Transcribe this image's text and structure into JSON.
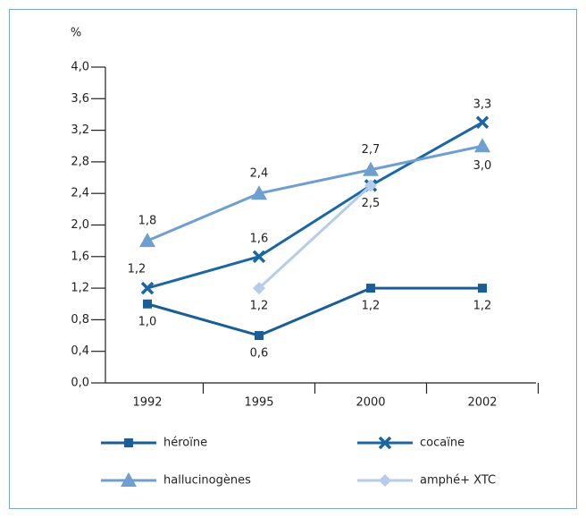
{
  "chart_data": {
    "type": "line",
    "y_label": "%",
    "categories": [
      "1992",
      "1995",
      "2000",
      "2002"
    ],
    "ylim": [
      0,
      4
    ],
    "yticks": [
      {
        "value": 0,
        "label": "0,0"
      },
      {
        "value": 0.4,
        "label": "0,4"
      },
      {
        "value": 0.8,
        "label": "0,8"
      },
      {
        "value": 1.2,
        "label": "1,2"
      },
      {
        "value": 1.6,
        "label": "1,6"
      },
      {
        "value": 2.0,
        "label": "2,0"
      },
      {
        "value": 2.4,
        "label": "2,4"
      },
      {
        "value": 2.8,
        "label": "2,8"
      },
      {
        "value": 3.2,
        "label": "3,2"
      },
      {
        "value": 3.6,
        "label": "3,6"
      },
      {
        "value": 4.0,
        "label": "4,0"
      }
    ],
    "series": [
      {
        "name": "héroïne",
        "color": "#1a5e97",
        "marker": "square",
        "values": [
          1.0,
          0.6,
          1.2,
          1.2
        ],
        "value_labels": [
          "1,0",
          "0,6",
          "1,2",
          "1,2"
        ]
      },
      {
        "name": "cocaïne",
        "color": "#1a67a3",
        "marker": "x",
        "values": [
          1.2,
          1.6,
          2.5,
          3.3
        ],
        "value_labels": [
          "1,2",
          "1,6",
          null,
          "3,3"
        ]
      },
      {
        "name": "hallucinogènes",
        "color": "#6f9fd0",
        "marker": "triangle",
        "values": [
          1.8,
          2.4,
          2.7,
          3.0
        ],
        "value_labels": [
          "1,8",
          "2,4",
          "2,7",
          "3,0"
        ]
      },
      {
        "name": "amphé+ XTC",
        "color": "#b5cde8",
        "marker": "diamond",
        "values": [
          null,
          1.2,
          2.5,
          null
        ],
        "value_labels": [
          null,
          "1,2",
          "2,5",
          null
        ]
      }
    ]
  }
}
